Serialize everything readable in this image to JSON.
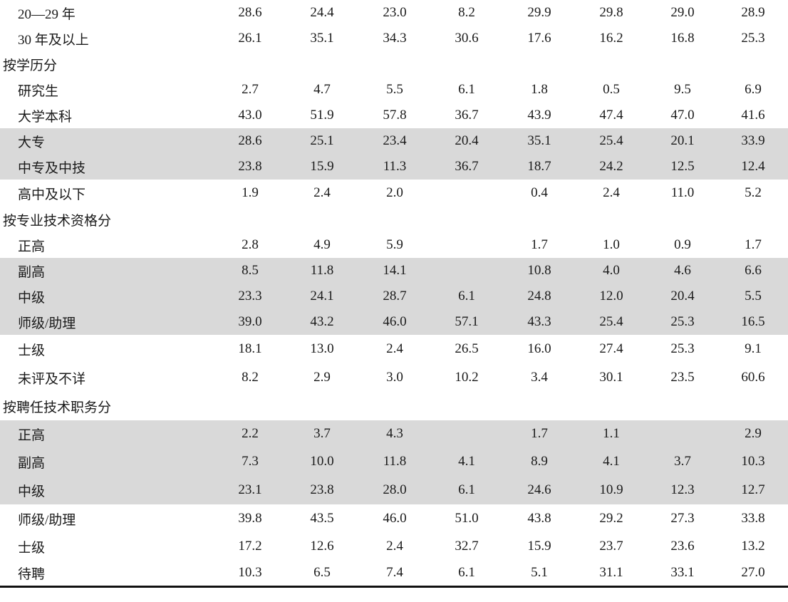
{
  "rows": [
    {
      "label": "20—29 年",
      "values": [
        "28.6",
        "24.4",
        "23.0",
        "8.2",
        "29.9",
        "29.8",
        "29.0",
        "28.9"
      ]
    },
    {
      "label": "30 年及以上",
      "values": [
        "26.1",
        "35.1",
        "34.3",
        "30.6",
        "17.6",
        "16.2",
        "16.8",
        "25.3"
      ]
    },
    {
      "label": "按学历分",
      "section": true
    },
    {
      "label": "研究生",
      "values": [
        "2.7",
        "4.7",
        "5.5",
        "6.1",
        "1.8",
        "0.5",
        "9.5",
        "6.9"
      ]
    },
    {
      "label": "大学本科",
      "values": [
        "43.0",
        "51.9",
        "57.8",
        "36.7",
        "43.9",
        "47.4",
        "47.0",
        "41.6"
      ]
    },
    {
      "label": "大专",
      "values": [
        "28.6",
        "25.1",
        "23.4",
        "20.4",
        "35.1",
        "25.4",
        "20.1",
        "33.9"
      ],
      "shaded": true
    },
    {
      "label": "中专及中技",
      "values": [
        "23.8",
        "15.9",
        "11.3",
        "36.7",
        "18.7",
        "24.2",
        "12.5",
        "12.4"
      ],
      "shaded": true
    },
    {
      "label": "高中及以下",
      "values": [
        "1.9",
        "2.4",
        "2.0",
        "",
        "0.4",
        "2.4",
        "11.0",
        "5.2"
      ]
    },
    {
      "label": "按专业技术资格分",
      "section": true
    },
    {
      "label": "正高",
      "values": [
        "2.8",
        "4.9",
        "5.9",
        "",
        "1.7",
        "1.0",
        "0.9",
        "1.7"
      ]
    },
    {
      "label": "副高",
      "values": [
        "8.5",
        "11.8",
        "14.1",
        "",
        "10.8",
        "4.0",
        "4.6",
        "6.6"
      ],
      "shaded": true
    },
    {
      "label": "中级",
      "values": [
        "23.3",
        "24.1",
        "28.7",
        "6.1",
        "24.8",
        "12.0",
        "20.4",
        "5.5"
      ],
      "shaded": true
    },
    {
      "label": "师级/助理",
      "values": [
        "39.0",
        "43.2",
        "46.0",
        "57.1",
        "43.3",
        "25.4",
        "25.3",
        "16.5"
      ],
      "shaded": true
    },
    {
      "label": "士级",
      "values": [
        "18.1",
        "13.0",
        "2.4",
        "26.5",
        "16.0",
        "27.4",
        "25.3",
        "9.1"
      ]
    },
    {
      "label": "未评及不详",
      "values": [
        "8.2",
        "2.9",
        "3.0",
        "10.2",
        "3.4",
        "30.1",
        "23.5",
        "60.6"
      ]
    },
    {
      "label": "按聘任技术职务分",
      "section": true
    },
    {
      "label": "正高",
      "values": [
        "2.2",
        "3.7",
        "4.3",
        "",
        "1.7",
        "1.1",
        "",
        "2.9"
      ],
      "shaded": true
    },
    {
      "label": "副高",
      "values": [
        "7.3",
        "10.0",
        "11.8",
        "4.1",
        "8.9",
        "4.1",
        "3.7",
        "10.3"
      ],
      "shaded": true
    },
    {
      "label": "中级",
      "values": [
        "23.1",
        "23.8",
        "28.0",
        "6.1",
        "24.6",
        "10.9",
        "12.3",
        "12.7"
      ],
      "shaded": true
    },
    {
      "label": "师级/助理",
      "values": [
        "39.8",
        "43.5",
        "46.0",
        "51.0",
        "43.8",
        "29.2",
        "27.3",
        "33.8"
      ]
    },
    {
      "label": "士级",
      "values": [
        "17.2",
        "12.6",
        "2.4",
        "32.7",
        "15.9",
        "23.7",
        "23.6",
        "13.2"
      ]
    },
    {
      "label": "待聘",
      "values": [
        "10.3",
        "6.5",
        "7.4",
        "6.1",
        "5.1",
        "31.1",
        "33.1",
        "27.0"
      ]
    }
  ],
  "colors": {
    "shade": "#d9d9d9",
    "rule": "#111111",
    "text": "#1a1a1a"
  }
}
